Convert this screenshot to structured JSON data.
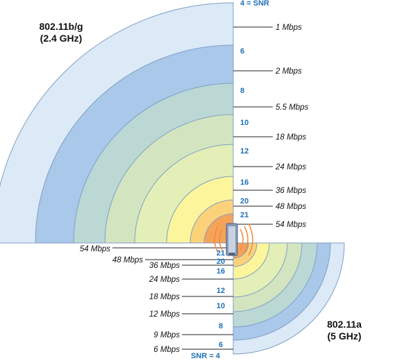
{
  "bg_title": {
    "line1": "802.11b/g",
    "line2": "(2.4 GHz)"
  },
  "a_title": {
    "line1": "802.11a",
    "line2": "(5 GHz)"
  },
  "bg_snr": [
    "4 = SNR",
    "6",
    "8",
    "10",
    "12",
    "16",
    "20",
    "21"
  ],
  "bg_rates": [
    "1 Mbps",
    "2 Mbps",
    "5.5 Mbps",
    "18 Mbps",
    "24 Mbps",
    "36 Mbps",
    "48 Mbps",
    "54 Mbps"
  ],
  "a_snr": [
    "21",
    "20",
    "16",
    "12",
    "10",
    "8",
    "6",
    "SNR = 4"
  ],
  "a_rates": [
    "54 Mbps",
    "48 Mbps",
    "36 Mbps",
    "24 Mbps",
    "18 Mbps",
    "12 Mbps",
    "9 Mbps",
    "6 Mbps"
  ],
  "ring_colors": [
    "#dce9f7",
    "#a9c8ea",
    "#bcd8d5",
    "#d3e5c0",
    "#e4efb8",
    "#fdf59c",
    "#fbd27a",
    "#f6a35a"
  ],
  "outline_color": "#7f9fc4",
  "snr_color": "#1f6fb3",
  "icon": "access-point-icon"
}
